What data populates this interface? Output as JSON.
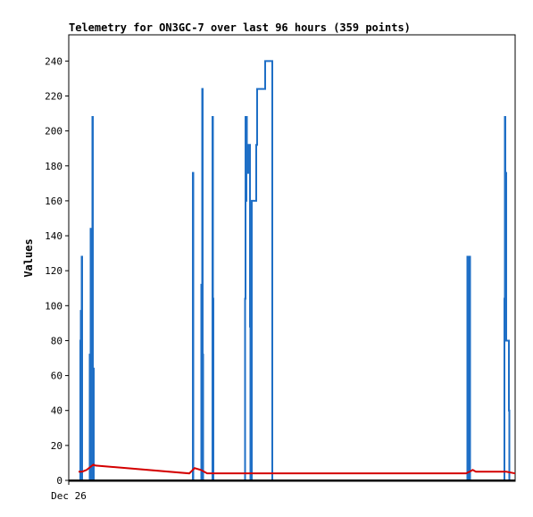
{
  "chart_data": {
    "type": "line",
    "title": "Telemetry for ON3GC-7 over last 96 hours (359 points)",
    "xlabel": "",
    "ylabel": "Values",
    "xlim": [
      0,
      1000
    ],
    "ylim": [
      0,
      255
    ],
    "y_ticks": [
      0,
      20,
      40,
      60,
      80,
      100,
      120,
      140,
      160,
      180,
      200,
      220,
      240
    ],
    "x_ticks": [
      {
        "x": 0,
        "label": "Dec 26"
      }
    ],
    "grid": false,
    "legend": "none",
    "series": [
      {
        "color": "#1f6fc6",
        "step": true,
        "points": [
          [
            0,
            0
          ],
          [
            25,
            0
          ],
          [
            26,
            80
          ],
          [
            27,
            97
          ],
          [
            28,
            80
          ],
          [
            29,
            128
          ],
          [
            30,
            0
          ],
          [
            46,
            0
          ],
          [
            47,
            72
          ],
          [
            48,
            0
          ],
          [
            49,
            144
          ],
          [
            50,
            0
          ],
          [
            51,
            144
          ],
          [
            52,
            0
          ],
          [
            53,
            208
          ],
          [
            54,
            0
          ],
          [
            55,
            64
          ],
          [
            56,
            0
          ],
          [
            277,
            0
          ],
          [
            278,
            176
          ],
          [
            279,
            0
          ],
          [
            296,
            0
          ],
          [
            297,
            112
          ],
          [
            298,
            0
          ],
          [
            299,
            224
          ],
          [
            300,
            72
          ],
          [
            301,
            0
          ],
          [
            321,
            0
          ],
          [
            322,
            208
          ],
          [
            323,
            104
          ],
          [
            324,
            0
          ],
          [
            394,
            0
          ],
          [
            395,
            104
          ],
          [
            396,
            208
          ],
          [
            397,
            160
          ],
          [
            398,
            208
          ],
          [
            399,
            184
          ],
          [
            400,
            176
          ],
          [
            401,
            184
          ],
          [
            403,
            192
          ],
          [
            404,
            176
          ],
          [
            405,
            192
          ],
          [
            406,
            88
          ],
          [
            407,
            0
          ],
          [
            409,
            0
          ],
          [
            410,
            160
          ],
          [
            420,
            192
          ],
          [
            422,
            224
          ],
          [
            438,
            224
          ],
          [
            440,
            240
          ],
          [
            455,
            240
          ],
          [
            456,
            0
          ],
          [
            892,
            0
          ],
          [
            893,
            128
          ],
          [
            894,
            0
          ],
          [
            896,
            0
          ],
          [
            897,
            64
          ],
          [
            898,
            128
          ],
          [
            899,
            0
          ],
          [
            975,
            0
          ],
          [
            976,
            104
          ],
          [
            977,
            208
          ],
          [
            978,
            176
          ],
          [
            980,
            80
          ],
          [
            985,
            80
          ],
          [
            986,
            40
          ],
          [
            987,
            0
          ],
          [
            1000,
            0
          ]
        ]
      },
      {
        "color": "#d40000",
        "step": false,
        "points": [
          [
            22,
            5
          ],
          [
            30,
            5
          ],
          [
            40,
            6
          ],
          [
            55,
            9
          ],
          [
            60,
            8.5
          ],
          [
            270,
            4
          ],
          [
            282,
            7
          ],
          [
            296,
            6
          ],
          [
            310,
            4
          ],
          [
            500,
            4
          ],
          [
            700,
            4
          ],
          [
            890,
            4
          ],
          [
            898,
            5
          ],
          [
            905,
            6
          ],
          [
            912,
            5
          ],
          [
            980,
            5
          ],
          [
            1000,
            4
          ]
        ]
      },
      {
        "color": "#000000",
        "step": false,
        "points": [
          [
            0,
            0
          ],
          [
            1000,
            0
          ]
        ]
      }
    ]
  }
}
